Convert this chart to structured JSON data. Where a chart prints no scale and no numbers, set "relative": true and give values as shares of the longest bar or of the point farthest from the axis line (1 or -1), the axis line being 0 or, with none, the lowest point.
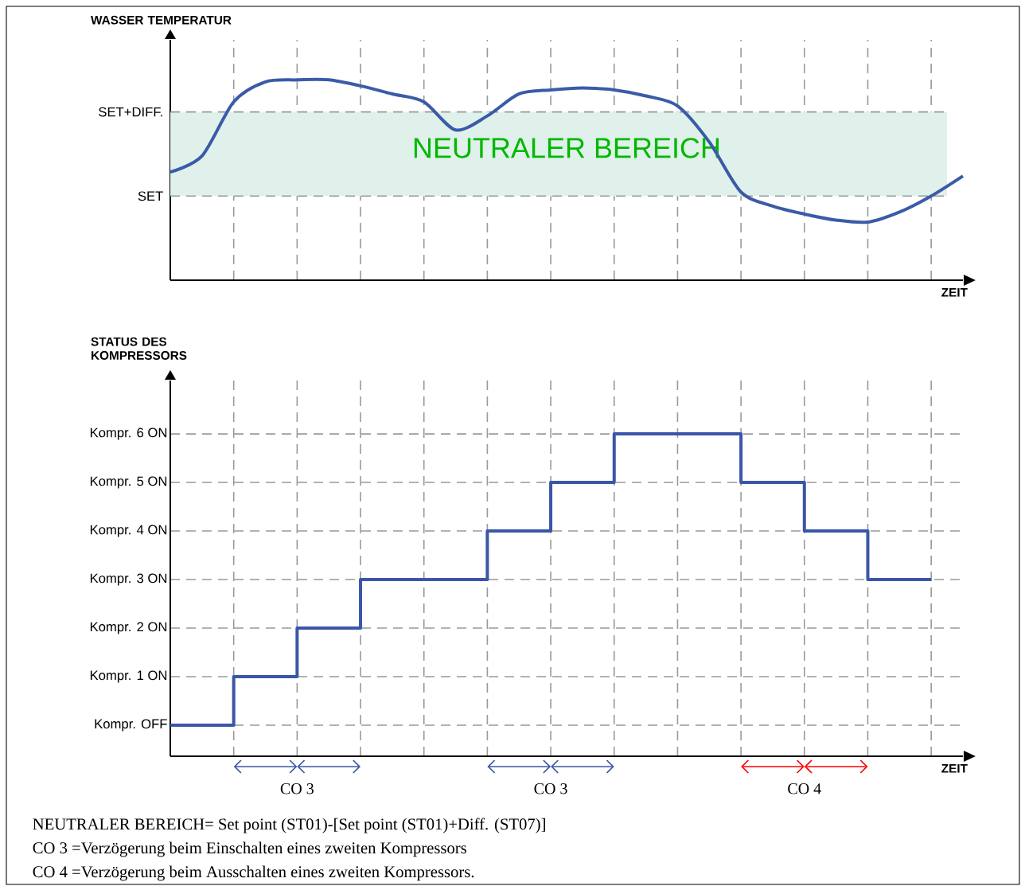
{
  "chart_data": [
    {
      "type": "line",
      "ylabel": "WASSER TEMPERATUR",
      "xlabel": "ZEIT",
      "color": "#3a5ba8",
      "categories": [
        null,
        null,
        null,
        null,
        null,
        null,
        null,
        null,
        null,
        null,
        null,
        null,
        null,
        null,
        null,
        null,
        null,
        null,
        null,
        null,
        null,
        null,
        null,
        null,
        null,
        null
      ],
      "values": [
        0.54,
        0.62,
        0.89,
        0.99,
        1,
        1,
        0.97,
        0.93,
        0.89,
        0.75,
        0.82,
        0.93,
        0.95,
        0.96,
        0.95,
        0.92,
        0.87,
        0.69,
        0.44,
        0.37,
        0.33,
        0.3,
        0.29,
        0.34,
        0.42,
        0.52
      ],
      "relative": true,
      "grid": "x",
      "tick_labels": false,
      "ref_lines": [
        {
          "axis": "y",
          "value": 0.42,
          "label": "SET"
        },
        {
          "axis": "y",
          "value": 0.84,
          "label": "SET+DIFF."
        }
      ],
      "bands": [
        {
          "axis": "y",
          "from": 0.42,
          "to": 0.84,
          "label": "NEUTRALER BEREICH",
          "color": "#e0f1eb"
        }
      ]
    },
    {
      "type": "step",
      "ylabel": "STATUS DES KOMPRESSORS",
      "xlabel": "ZEIT",
      "color": "#3a56a8",
      "categories": [
        null,
        null,
        null,
        null,
        null,
        null,
        null,
        null,
        null,
        null,
        null,
        null,
        null,
        null,
        null,
        null,
        null,
        null,
        null,
        null,
        null,
        null,
        null,
        null,
        null,
        null
      ],
      "values": [
        0,
        0,
        1,
        1,
        2,
        2,
        3,
        3,
        3,
        3,
        4,
        4,
        5,
        5,
        6,
        6,
        6,
        6,
        5,
        5,
        4,
        4,
        3,
        3,
        3,
        null
      ],
      "ylim": [
        -0.64,
        7.1
      ],
      "yticks": [
        {
          "value": 0,
          "label": "Kompr. OFF"
        },
        {
          "value": 1,
          "label": "Kompr. 1 ON"
        },
        {
          "value": 2,
          "label": "Kompr. 2 ON"
        },
        {
          "value": 3,
          "label": "Kompr. 3 ON"
        },
        {
          "value": 4,
          "label": "Kompr. 4 ON"
        },
        {
          "value": 5,
          "label": "Kompr. 5 ON"
        },
        {
          "value": 6,
          "label": "Kompr. 6 ON"
        }
      ],
      "grid": true,
      "tick_labels": "y",
      "annotations": [
        "CO 3",
        "CO 3",
        "CO 4",
        "NEUTRALER BEREICH= Set point (ST01)-[Set point (ST01)+Diff. (ST07)]",
        "CO 3 =Verzögerung beim Einschalten eines zweiten Kompressors",
        "CO 4 =Verzögerung beim Ausschalten eines zweiten Kompressors."
      ]
    }
  ]
}
